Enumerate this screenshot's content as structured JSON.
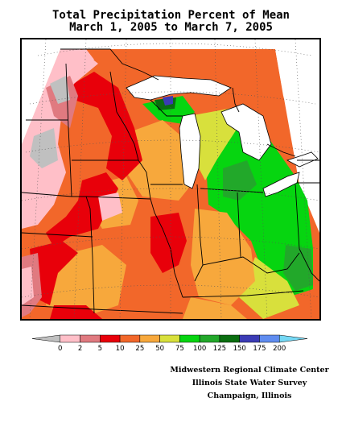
{
  "title": {
    "line1": "Total Precipitation Percent of Mean",
    "line2": "March 1, 2005 to March 7, 2005"
  },
  "legend": {
    "bins": [
      {
        "label": "0",
        "color": "#c0c0c0"
      },
      {
        "label": "2",
        "color": "#ffbfc8"
      },
      {
        "label": "5",
        "color": "#e07a80"
      },
      {
        "label": "10",
        "color": "#e8000a"
      },
      {
        "label": "25",
        "color": "#f2672a"
      },
      {
        "label": "50",
        "color": "#f7a83c"
      },
      {
        "label": "75",
        "color": "#d8e03c"
      },
      {
        "label": "100",
        "color": "#06d510"
      },
      {
        "label": "125",
        "color": "#22a82a"
      },
      {
        "label": "150",
        "color": "#0a6e10"
      },
      {
        "label": "175",
        "color": "#3b3bb5"
      },
      {
        "label": "200",
        "color": "#5f8cf0"
      },
      {
        "label": "",
        "color": "#74d8f4"
      }
    ]
  },
  "credits": {
    "line1": "Midwestern Regional Climate Center",
    "line2": "Illinois State Water Survey",
    "line3": "Champaign, Illinois"
  },
  "map": {
    "lake_color": "#ffffff",
    "border_color": "#000000",
    "grid_color": "#555555"
  }
}
